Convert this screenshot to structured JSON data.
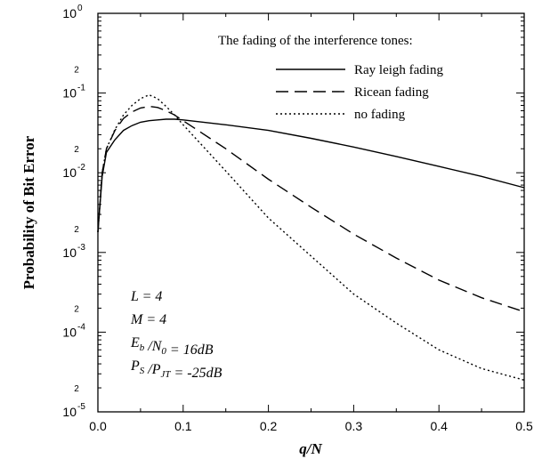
{
  "chart_data": {
    "type": "line",
    "xlabel": "q/N",
    "ylabel": "Probability of Bit Error",
    "xlim": [
      0.0,
      0.5
    ],
    "ylim": [
      1e-05,
      1
    ],
    "yscale": "log",
    "x_ticks": [
      "0.0",
      "0.1",
      "0.2",
      "0.3",
      "0.4",
      "0.5"
    ],
    "y_ticks": [
      {
        "base": "10",
        "exp": "0"
      },
      {
        "base": "10",
        "exp": "-1"
      },
      {
        "base": "10",
        "exp": "-2"
      },
      {
        "base": "10",
        "exp": "-3"
      },
      {
        "base": "10",
        "exp": "-4"
      },
      {
        "base": "10",
        "exp": "-5"
      }
    ],
    "y_minor_label": "2",
    "legend_title": "The fading of the interference tones:",
    "legend_position": "top-right",
    "grid": false,
    "series": [
      {
        "name": "Ray leigh fading",
        "style": "solid",
        "x": [
          0.0,
          0.005,
          0.01,
          0.02,
          0.03,
          0.04,
          0.05,
          0.06,
          0.07,
          0.08,
          0.09,
          0.1,
          0.15,
          0.2,
          0.25,
          0.3,
          0.35,
          0.4,
          0.45,
          0.5
        ],
        "y": [
          0.0018,
          0.009,
          0.018,
          0.026,
          0.034,
          0.039,
          0.043,
          0.045,
          0.046,
          0.047,
          0.047,
          0.046,
          0.04,
          0.034,
          0.027,
          0.021,
          0.016,
          0.012,
          0.009,
          0.0065
        ]
      },
      {
        "name": "Ricean fading",
        "style": "dashed",
        "x": [
          0.0,
          0.005,
          0.01,
          0.02,
          0.03,
          0.04,
          0.05,
          0.06,
          0.07,
          0.08,
          0.09,
          0.1,
          0.15,
          0.2,
          0.25,
          0.3,
          0.35,
          0.4,
          0.45,
          0.5
        ],
        "y": [
          0.0018,
          0.01,
          0.02,
          0.034,
          0.048,
          0.058,
          0.065,
          0.068,
          0.066,
          0.06,
          0.053,
          0.045,
          0.02,
          0.0083,
          0.0037,
          0.0017,
          0.00085,
          0.00045,
          0.00027,
          0.00018
        ]
      },
      {
        "name": "no fading",
        "style": "dotted",
        "x": [
          0.0,
          0.005,
          0.01,
          0.02,
          0.03,
          0.04,
          0.05,
          0.06,
          0.07,
          0.08,
          0.09,
          0.1,
          0.15,
          0.2,
          0.25,
          0.3,
          0.35,
          0.4,
          0.45,
          0.5
        ],
        "y": [
          0.0018,
          0.01,
          0.02,
          0.035,
          0.053,
          0.07,
          0.085,
          0.095,
          0.085,
          0.068,
          0.053,
          0.04,
          0.0105,
          0.0027,
          0.0009,
          0.0003,
          0.00013,
          6e-05,
          3.5e-05,
          2.5e-05
        ]
      }
    ],
    "annotations": [
      {
        "main": "L",
        "sub": "",
        "rest": " = 4"
      },
      {
        "main": "M",
        "sub": "",
        "rest": " = 4"
      },
      {
        "main": "E",
        "sub": "b",
        "main2": " /N",
        "sub2": "0",
        "rest": " = 16dB"
      },
      {
        "main": "P",
        "sub": "S",
        "main2": " /P",
        "sub2": "JT",
        "rest": " = -25dB"
      }
    ]
  }
}
